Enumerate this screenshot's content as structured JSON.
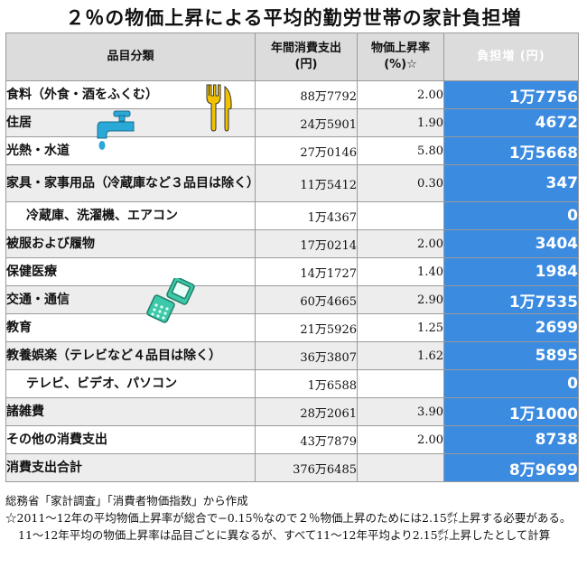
{
  "title": "２％の物価上昇による平均的勤労世帯の家計負担増",
  "headers": {
    "item": "品目分類",
    "expenditure_line1": "年間消費支出",
    "expenditure_line2": "(円)",
    "rate_line1": "物価上昇率",
    "rate_line2": "(%)☆",
    "burden": "負担増 (円)"
  },
  "rows": [
    {
      "item": "食料（外食・酒をふくむ）",
      "expenditure": "88万7792",
      "rate": "2.00",
      "burden": "1万7756"
    },
    {
      "item": "住居",
      "expenditure": "24万5901",
      "rate": "1.90",
      "burden": "4672"
    },
    {
      "item": "光熱・水道",
      "expenditure": "27万0146",
      "rate": "5.80",
      "burden": "1万5668"
    },
    {
      "item": "家具・家事用品（冷蔵庫など３品目は除く）",
      "expenditure": "11万5412",
      "rate": "0.30",
      "burden": "347"
    },
    {
      "item": "冷蔵庫、洗濯機、エアコン",
      "expenditure": "1万4367",
      "rate": "",
      "burden": "0"
    },
    {
      "item": "被服および履物",
      "expenditure": "17万0214",
      "rate": "2.00",
      "burden": "3404"
    },
    {
      "item": "保健医療",
      "expenditure": "14万1727",
      "rate": "1.40",
      "burden": "1984"
    },
    {
      "item": "交通・通信",
      "expenditure": "60万4665",
      "rate": "2.90",
      "burden": "1万7535"
    },
    {
      "item": "教育",
      "expenditure": "21万5926",
      "rate": "1.25",
      "burden": "2699"
    },
    {
      "item": "教養娯楽（テレビなど４品目は除く）",
      "expenditure": "36万3807",
      "rate": "1.62",
      "burden": "5895"
    },
    {
      "item": "テレビ、ビデオ、パソコン",
      "expenditure": "1万6588",
      "rate": "",
      "burden": "0"
    },
    {
      "item": "諸雑費",
      "expenditure": "28万2061",
      "rate": "3.90",
      "burden": "1万1000"
    },
    {
      "item": "その他の消費支出",
      "expenditure": "43万7879",
      "rate": "2.00",
      "burden": "8738"
    },
    {
      "item": "消費支出合計",
      "expenditure": "376万6485",
      "rate": "",
      "burden": "8万9699"
    }
  ],
  "notes": {
    "source": "総務省「家計調査」「消費者物価指数」から作成",
    "footnote": "☆2011〜12年の平均物価上昇率が総合で−0.15％なので２％物価上昇のためには2.15㌽上昇する必要がある。11〜12年平均の物価上昇率は品目ごとに異なるが、すべて11〜12年平均より2.15㌽上昇したとして計算"
  },
  "icons": [
    "fork-knife-icon",
    "faucet-icon",
    "mobile-phone-icon"
  ],
  "colors": {
    "accent": "#3b8be0",
    "header_bg": "#dcdcdc",
    "alt_row": "#ededed",
    "icon_yellow": "#f2c200",
    "icon_blue": "#2aa8d8",
    "icon_green": "#3cc9a8"
  }
}
